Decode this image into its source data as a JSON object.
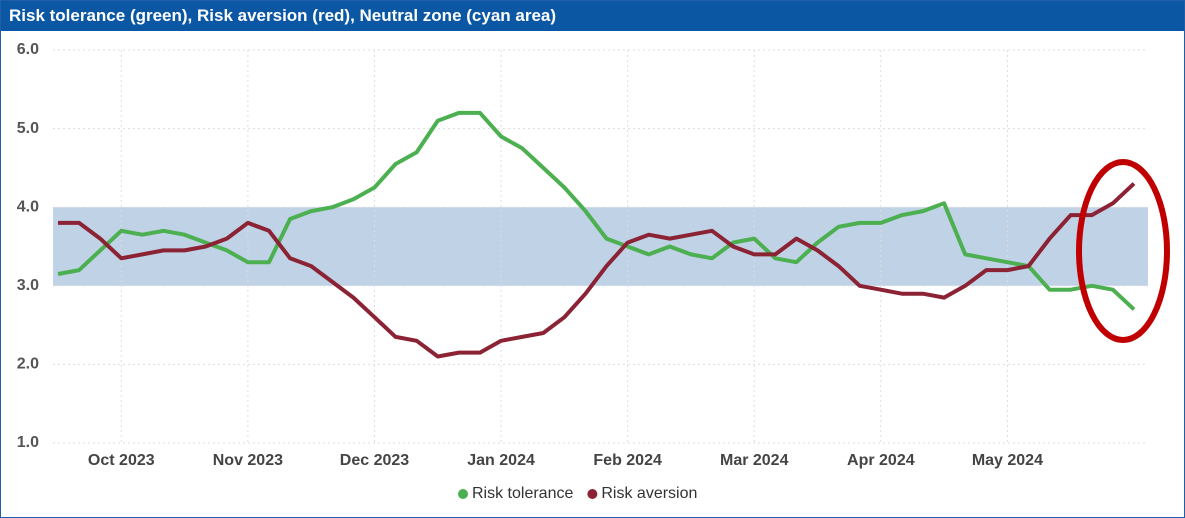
{
  "chart_data": {
    "type": "line",
    "title": "Risk tolerance (green), Risk aversion (red), Neutral zone (cyan area)",
    "categories": [
      null,
      null,
      null,
      "Oct 2023",
      null,
      null,
      null,
      null,
      null,
      "Nov 2023",
      null,
      null,
      null,
      null,
      null,
      "Dec 2023",
      null,
      null,
      null,
      null,
      null,
      "Jan 2024",
      null,
      null,
      null,
      null,
      null,
      "Feb 2024",
      null,
      null,
      null,
      null,
      null,
      "Mar 2024",
      null,
      null,
      null,
      null,
      null,
      "Apr 2024",
      null,
      null,
      null,
      null,
      null,
      "May 2024",
      null,
      null,
      null,
      null,
      null,
      null
    ],
    "series": [
      {
        "name": "Risk tolerance",
        "color": "#4caf50",
        "values": [
          3.15,
          3.2,
          3.45,
          3.7,
          3.65,
          3.7,
          3.65,
          3.55,
          3.45,
          3.3,
          3.3,
          3.85,
          3.95,
          4.0,
          4.1,
          4.25,
          4.55,
          4.7,
          5.1,
          5.2,
          5.2,
          4.9,
          4.75,
          4.5,
          4.25,
          3.95,
          3.6,
          3.5,
          3.4,
          3.5,
          3.4,
          3.35,
          3.55,
          3.6,
          3.35,
          3.3,
          3.55,
          3.75,
          3.8,
          3.8,
          3.9,
          3.95,
          4.05,
          3.4,
          3.35,
          3.3,
          3.25,
          2.95,
          2.95,
          3.0,
          2.95,
          2.7
        ]
      },
      {
        "name": "Risk aversion",
        "color": "#8b2335",
        "values": [
          3.8,
          3.8,
          3.6,
          3.35,
          3.4,
          3.45,
          3.45,
          3.5,
          3.6,
          3.8,
          3.7,
          3.35,
          3.25,
          3.05,
          2.85,
          2.6,
          2.35,
          2.3,
          2.1,
          2.15,
          2.15,
          2.3,
          2.35,
          2.4,
          2.6,
          2.9,
          3.25,
          3.55,
          3.65,
          3.6,
          3.65,
          3.7,
          3.5,
          3.4,
          3.4,
          3.6,
          3.45,
          3.25,
          3.0,
          2.95,
          2.9,
          2.9,
          2.85,
          3.0,
          3.2,
          3.2,
          3.25,
          3.6,
          3.9,
          3.9,
          4.05,
          4.3
        ]
      }
    ],
    "band": [
      3.0,
      4.0
    ],
    "band_color": "#bfd2e6",
    "ylim": [
      1.0,
      6.0
    ],
    "yticks": [
      {
        "value": 1,
        "label": "1.0"
      },
      {
        "value": 2,
        "label": "2.0"
      },
      {
        "value": 3,
        "label": "3.0"
      },
      {
        "value": 4,
        "label": "4.0"
      },
      {
        "value": 5,
        "label": "5.0"
      },
      {
        "value": 6,
        "label": "6.0"
      }
    ],
    "grid": true
  }
}
